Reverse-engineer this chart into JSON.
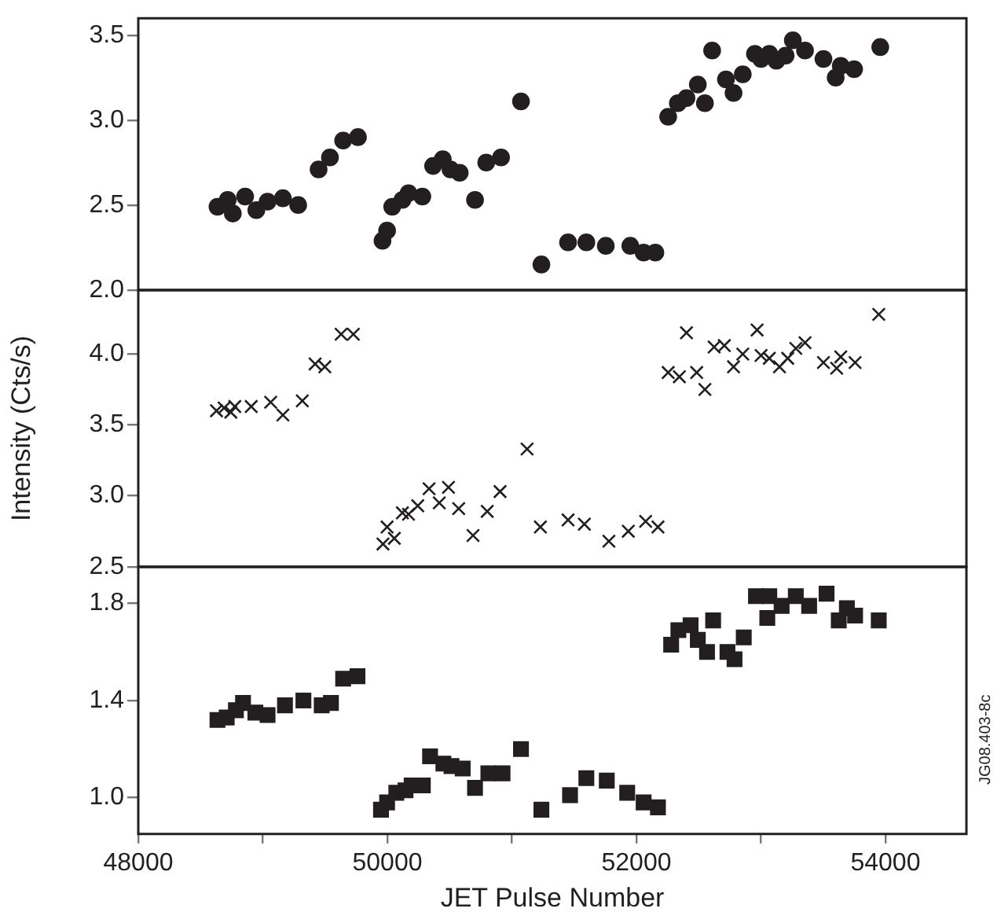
{
  "chart_data": [
    {
      "type": "scatter",
      "marker": "circle",
      "xlim": [
        48000,
        54650
      ],
      "ylim": [
        2.0,
        3.6
      ],
      "yticks": [
        {
          "value": 2,
          "label": "2.0"
        },
        2.5,
        {
          "value": 3,
          "label": "3.0"
        },
        3.5
      ],
      "tick_labels": "y",
      "series": [
        {
          "color": "#231f20",
          "x": [
            48636,
            48718,
            48759,
            48858,
            48948,
            49038,
            49161,
            49284,
            49448,
            49539,
            49645,
            49764,
            49961,
            49998,
            50039,
            50121,
            50170,
            50281,
            50367,
            50445,
            50507,
            50581,
            50704,
            50794,
            50913,
            51073,
            51237,
            51451,
            51598,
            51754,
            51951,
            52058,
            52152,
            52255,
            52333,
            52402,
            52493,
            52550,
            52608,
            52719,
            52780,
            52854,
            52952,
            53001,
            53067,
            53124,
            53198,
            53256,
            53354,
            53502,
            53600,
            53641,
            53748,
            53958
          ],
          "values": [
            2.49,
            2.53,
            2.45,
            2.55,
            2.47,
            2.52,
            2.54,
            2.5,
            2.71,
            2.78,
            2.88,
            2.9,
            2.29,
            2.35,
            2.49,
            2.53,
            2.57,
            2.55,
            2.73,
            2.77,
            2.71,
            2.69,
            2.53,
            2.75,
            2.78,
            3.11,
            2.15,
            2.28,
            2.28,
            2.26,
            2.26,
            2.22,
            2.22,
            3.02,
            3.1,
            3.13,
            3.21,
            3.1,
            3.41,
            3.24,
            3.16,
            3.27,
            3.39,
            3.36,
            3.39,
            3.35,
            3.38,
            3.47,
            3.41,
            3.36,
            3.25,
            3.32,
            3.3,
            3.43
          ]
        }
      ]
    },
    {
      "type": "scatter",
      "marker": "cross",
      "ylabel": "Intensity (Cts/s)",
      "xlim": [
        48000,
        54650
      ],
      "ylim": [
        2.5,
        4.45
      ],
      "yticks": [
        2.5,
        {
          "value": 3,
          "label": "3.0"
        },
        3.5,
        {
          "value": 4,
          "label": "4.0"
        }
      ],
      "tick_labels": "y",
      "series": [
        {
          "color": "#231f20",
          "x": [
            48628,
            48689,
            48743,
            48775,
            48907,
            49063,
            49161,
            49317,
            49420,
            49498,
            49629,
            49727,
            49965,
            49998,
            50056,
            50121,
            50170,
            50244,
            50335,
            50417,
            50491,
            50573,
            50688,
            50802,
            50905,
            51122,
            51229,
            51451,
            51582,
            51779,
            51935,
            52074,
            52173,
            52255,
            52345,
            52402,
            52484,
            52550,
            52624,
            52706,
            52780,
            52854,
            52969,
            53001,
            53067,
            53149,
            53215,
            53280,
            53354,
            53502,
            53608,
            53641,
            53756,
            53946
          ],
          "values": [
            3.6,
            3.62,
            3.59,
            3.63,
            3.63,
            3.66,
            3.57,
            3.67,
            3.93,
            3.91,
            4.14,
            4.14,
            2.66,
            2.78,
            2.7,
            2.88,
            2.87,
            2.93,
            3.05,
            2.95,
            3.06,
            2.91,
            2.72,
            2.89,
            3.03,
            3.33,
            2.78,
            2.83,
            2.8,
            2.68,
            2.75,
            2.82,
            2.78,
            3.87,
            3.84,
            4.15,
            3.87,
            3.75,
            4.05,
            4.06,
            3.91,
            4.0,
            4.17,
            3.99,
            3.97,
            3.91,
            3.97,
            4.04,
            4.08,
            3.94,
            3.9,
            3.98,
            3.94,
            4.28
          ]
        }
      ]
    },
    {
      "type": "scatter",
      "marker": "square",
      "xlabel": "JET Pulse Number",
      "annotations": [
        "JG08.403-8c"
      ],
      "xlim": [
        48000,
        54650
      ],
      "ylim": [
        0.85,
        1.95
      ],
      "yticks": [
        {
          "value": 1,
          "label": "1.0"
        },
        1.4,
        1.8
      ],
      "xticks": [
        48000,
        {
          "value": 49000,
          "label": null
        },
        50000,
        {
          "value": 51000,
          "label": null
        },
        52000,
        {
          "value": 53000,
          "label": null
        },
        54000
      ],
      "series": [
        {
          "color": "#231f20",
          "x": [
            48636,
            48710,
            48784,
            48841,
            48940,
            49038,
            49178,
            49326,
            49473,
            49547,
            49645,
            49760,
            49949,
            49998,
            50072,
            50146,
            50195,
            50285,
            50343,
            50450,
            50515,
            50605,
            50704,
            50811,
            50925,
            51073,
            51237,
            51467,
            51598,
            51762,
            51926,
            52058,
            52173,
            52279,
            52337,
            52435,
            52493,
            52567,
            52616,
            52731,
            52788,
            52862,
            52960,
            53067,
            53051,
            53166,
            53280,
            53387,
            53527,
            53625,
            53690,
            53756,
            53946
          ],
          "values": [
            1.32,
            1.33,
            1.36,
            1.39,
            1.35,
            1.34,
            1.38,
            1.4,
            1.38,
            1.39,
            1.49,
            1.5,
            0.95,
            0.98,
            1.02,
            1.03,
            1.05,
            1.05,
            1.17,
            1.14,
            1.13,
            1.12,
            1.04,
            1.1,
            1.1,
            1.2,
            0.95,
            1.01,
            1.08,
            1.07,
            1.02,
            0.98,
            0.96,
            1.63,
            1.69,
            1.71,
            1.65,
            1.6,
            1.73,
            1.6,
            1.57,
            1.66,
            1.83,
            1.83,
            1.74,
            1.79,
            1.83,
            1.79,
            1.84,
            1.73,
            1.78,
            1.75,
            1.73
          ]
        }
      ]
    }
  ]
}
